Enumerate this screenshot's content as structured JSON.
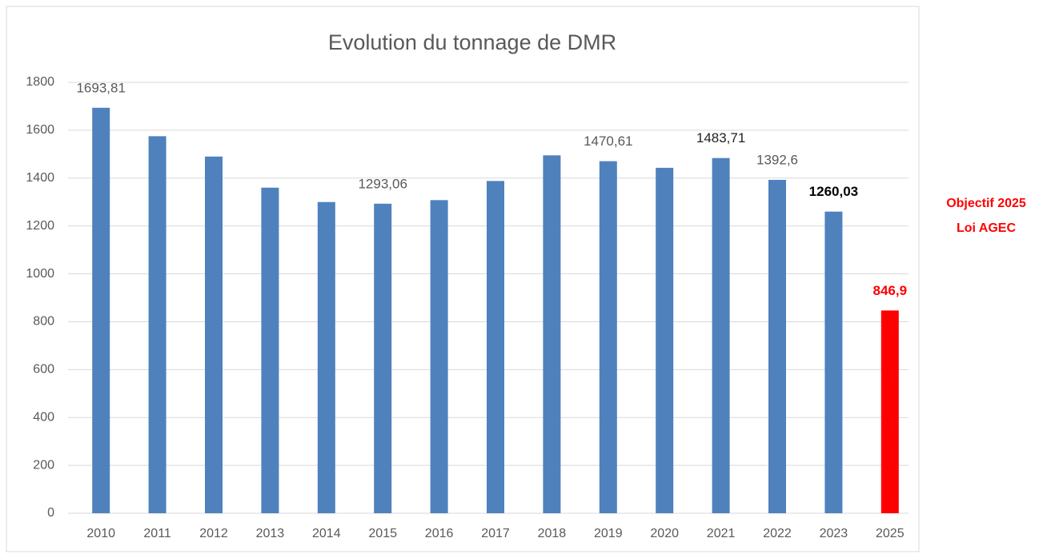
{
  "chart_data": {
    "type": "bar",
    "title": "Evolution du tonnage de DMR",
    "categories": [
      "2010",
      "2011",
      "2012",
      "2013",
      "2014",
      "2015",
      "2016",
      "2017",
      "2018",
      "2019",
      "2020",
      "2021",
      "2022",
      "2023",
      "2025"
    ],
    "values": [
      1693.81,
      1575,
      1490,
      1360,
      1300,
      1293.06,
      1308,
      1388,
      1495,
      1470.61,
      1443,
      1483.71,
      1392.6,
      1260.03,
      846.9
    ],
    "value_labels": [
      "1693,81",
      null,
      null,
      null,
      null,
      "1293,06",
      null,
      null,
      null,
      "1470,61",
      null,
      "1483,71",
      "1392,6",
      "1260,03",
      "846,9"
    ],
    "colors": [
      "#4f81bd",
      "#4f81bd",
      "#4f81bd",
      "#4f81bd",
      "#4f81bd",
      "#4f81bd",
      "#4f81bd",
      "#4f81bd",
      "#4f81bd",
      "#4f81bd",
      "#4f81bd",
      "#4f81bd",
      "#4f81bd",
      "#4f81bd",
      "#ff0000"
    ],
    "ylim": [
      0,
      1800
    ],
    "yticks": [
      0,
      200,
      400,
      600,
      800,
      1000,
      1200,
      1400,
      1600,
      1800
    ],
    "grid": true,
    "annotation": [
      "Objectif 2025",
      "Loi AGEC"
    ]
  }
}
